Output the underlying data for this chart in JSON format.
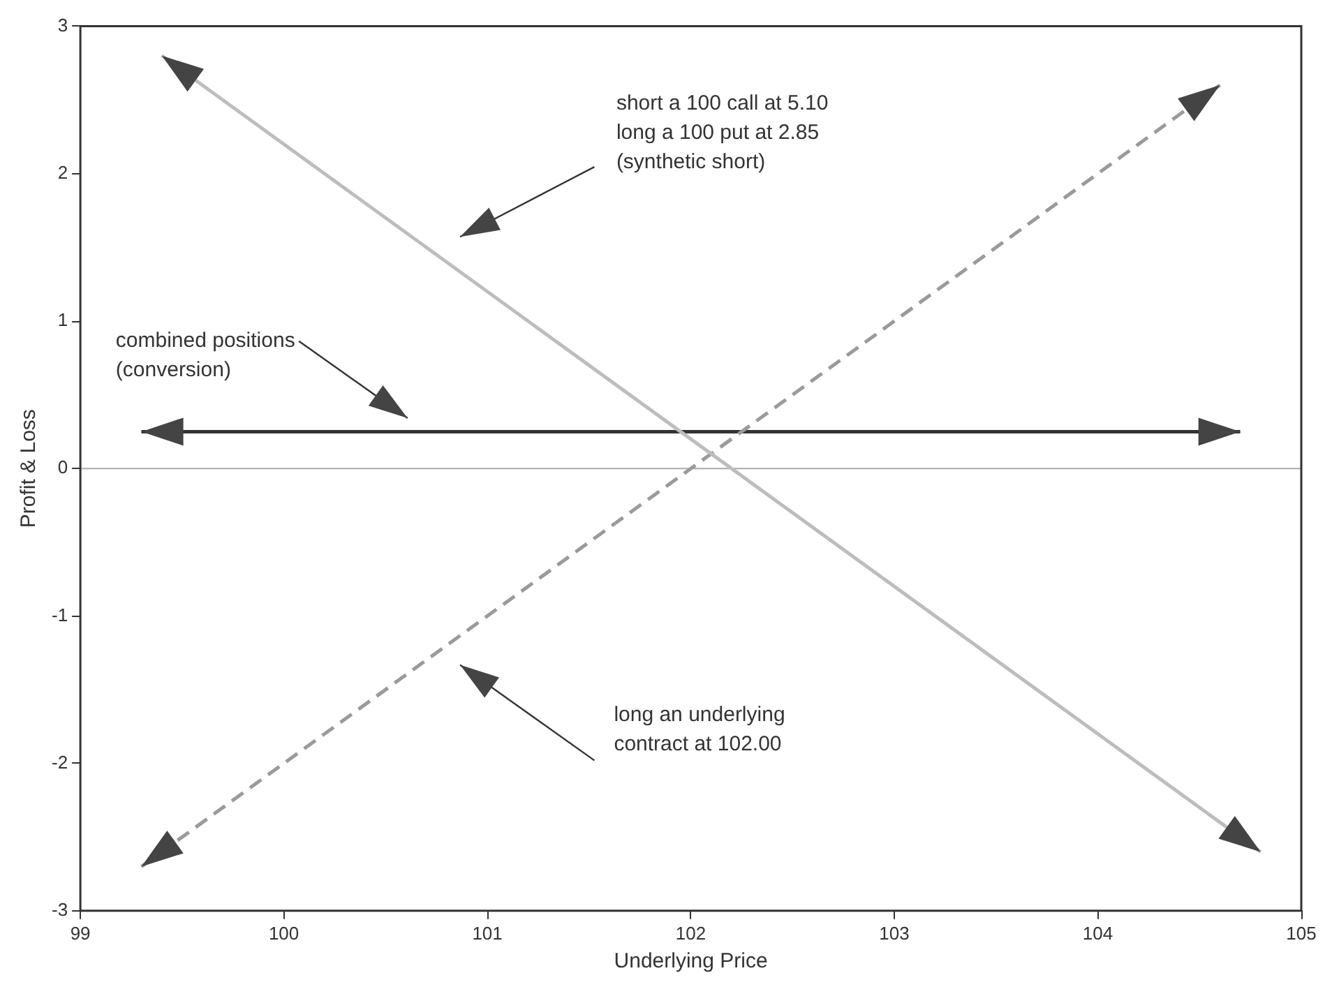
{
  "chart_data": {
    "type": "line",
    "xlabel": "Underlying Price",
    "ylabel": "Profit & Loss",
    "xlim": [
      99,
      105
    ],
    "xticks": [
      99,
      100,
      101,
      102,
      103,
      104,
      105
    ],
    "ylim": [
      -3,
      3
    ],
    "yticks": [
      -3,
      -2,
      -1,
      0,
      1,
      2,
      3
    ],
    "grid": false,
    "legend": false,
    "marker": "none",
    "series": [
      {
        "color": "#bdbdbd",
        "line_style": "solid",
        "x": [
          99.4,
          104.8
        ],
        "values": [
          2.8,
          -2.6
        ]
      },
      {
        "color": "#9a9a9a",
        "line_style": "dashed",
        "x": [
          99.3,
          104.6
        ],
        "values": [
          -2.7,
          2.6
        ]
      },
      {
        "color": "#333333",
        "line_style": "solid",
        "x": [
          99.3,
          104.7
        ],
        "values": [
          0.25,
          0.25
        ]
      }
    ],
    "ref_lines": [
      {
        "axis": "y",
        "value": 0,
        "color": "#aaaaaa"
      }
    ],
    "annotations": [
      "short a 100 call at 5.10\nlong a 100 put at 2.85\n(synthetic short)",
      "combined positions\n(conversion)",
      "long an underlying\ncontract at 102.00"
    ]
  }
}
